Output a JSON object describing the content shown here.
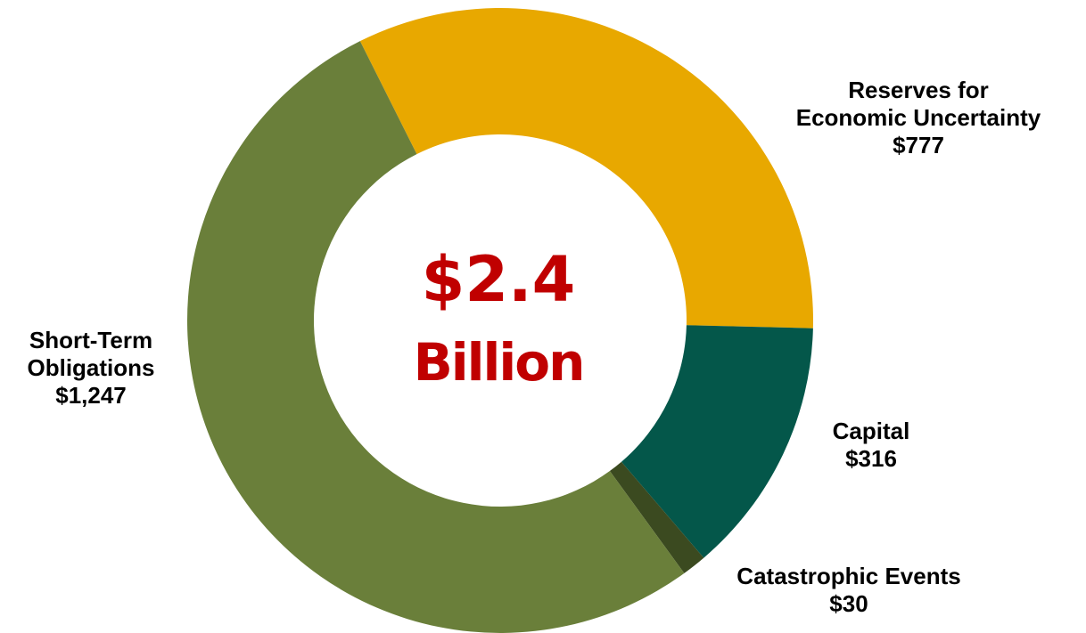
{
  "chart_data": {
    "type": "pie",
    "center_total": "$2.4",
    "center_unit": "Billion",
    "slices": [
      {
        "name": "Reserves for Economic Uncertainty",
        "label_lines": [
          "Reserves for",
          "Economic Uncertainty"
        ],
        "value_label": "$777",
        "value": 777,
        "color": "#E8A800"
      },
      {
        "name": "Capital",
        "label_lines": [
          "Capital"
        ],
        "value_label": "$316",
        "value": 316,
        "color": "#04574A"
      },
      {
        "name": "Catastrophic Events",
        "label_lines": [
          "Catastrophic Events"
        ],
        "value_label": "$30",
        "value": 30,
        "color": "#3B4A20"
      },
      {
        "name": "Short-Term Obligations",
        "label_lines": [
          "Short-Term",
          "Obligations"
        ],
        "value_label": "$1,247",
        "value": 1247,
        "color": "#6A7F3A"
      }
    ]
  }
}
